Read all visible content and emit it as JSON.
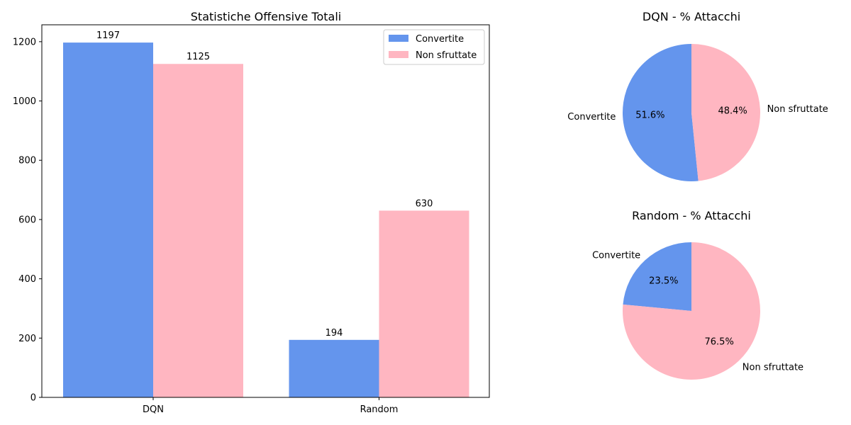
{
  "colors": {
    "convertite": "#6495ED",
    "non_sfruttate": "#FFB6C1"
  },
  "chart_data": [
    {
      "type": "bar",
      "title": "Statistiche Offensive Totali",
      "xlabel": "",
      "ylabel": "",
      "categories": [
        "DQN",
        "Random"
      ],
      "series": [
        {
          "name": "Convertite",
          "values": [
            1197,
            194
          ]
        },
        {
          "name": "Non sfruttate",
          "values": [
            1125,
            630
          ]
        }
      ],
      "ylim": [
        0,
        1257
      ],
      "yticks": [
        0,
        200,
        400,
        600,
        800,
        1000,
        1200
      ],
      "data_labels": true,
      "legend": "top-right",
      "grid": false
    },
    {
      "type": "pie",
      "title": "DQN - % Attacchi",
      "labels": [
        "Convertite",
        "Non sfruttate"
      ],
      "values": [
        51.6,
        48.4
      ],
      "pct_labels": [
        "51.6%",
        "48.4%"
      ],
      "start_angle": 90,
      "direction": "counterclockwise"
    },
    {
      "type": "pie",
      "title": "Random - % Attacchi",
      "labels": [
        "Convertite",
        "Non sfruttate"
      ],
      "values": [
        23.5,
        76.5
      ],
      "pct_labels": [
        "23.5%",
        "76.5%"
      ],
      "start_angle": 90,
      "direction": "counterclockwise"
    }
  ]
}
